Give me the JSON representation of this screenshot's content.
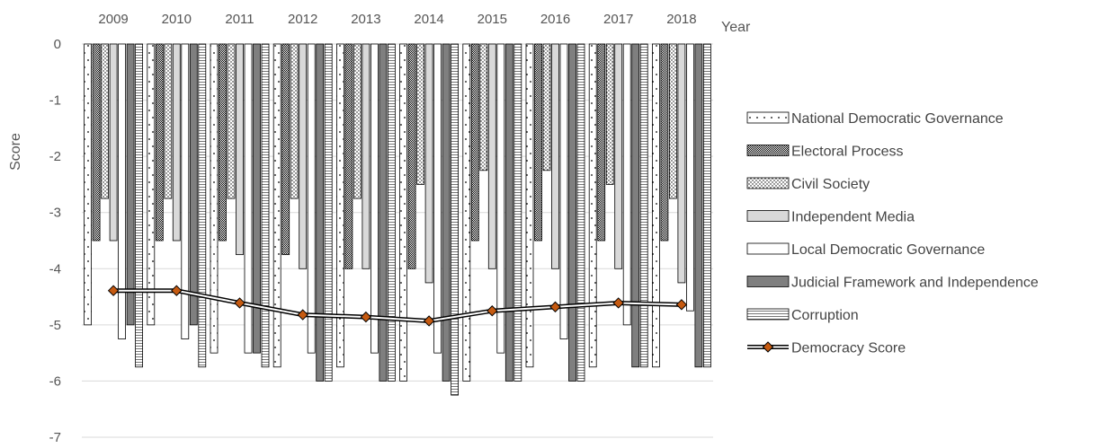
{
  "chart_data": {
    "type": "bar",
    "ylabel": "Score",
    "xlabel": "Year",
    "ylim": [
      -7,
      0
    ],
    "yticks": [
      0,
      -1,
      -2,
      -3,
      -4,
      -5,
      -6,
      -7
    ],
    "x_axis_position": "top",
    "grid": "horizontal",
    "legend_placement": "right",
    "categories": [
      "2009",
      "2010",
      "2011",
      "2012",
      "2013",
      "2014",
      "2015",
      "2016",
      "2017",
      "2018"
    ],
    "series": [
      {
        "name": "National Democratic Governance",
        "kind": "bar",
        "pattern": "sparse-dots",
        "values": [
          -5,
          -5,
          -5.5,
          -5.75,
          -5.75,
          -6,
          -6,
          -5.75,
          -5.75,
          -5.75
        ]
      },
      {
        "name": "Electoral Process",
        "kind": "bar",
        "pattern": "dense-checker",
        "values": [
          -3.5,
          -3.5,
          -3.5,
          -3.75,
          -4,
          -4,
          -3.5,
          -3.5,
          -3.5,
          -3.5
        ]
      },
      {
        "name": "Civil Society",
        "kind": "bar",
        "pattern": "dots",
        "values": [
          -2.75,
          -2.75,
          -2.75,
          -2.75,
          -2.75,
          -2.5,
          -2.25,
          -2.25,
          -2.5,
          -2.75
        ]
      },
      {
        "name": "Independent Media",
        "kind": "bar",
        "pattern": "light-grey",
        "values": [
          -3.5,
          -3.5,
          -3.75,
          -4,
          -4,
          -4.25,
          -4,
          -4,
          -4,
          -4.25
        ]
      },
      {
        "name": "Local Democratic Governance",
        "kind": "bar",
        "pattern": "white",
        "values": [
          -5.25,
          -5.25,
          -5.5,
          -5.5,
          -5.5,
          -5.5,
          -5.5,
          -5.25,
          -5,
          -4.75
        ]
      },
      {
        "name": "Judicial Framework and Independence",
        "kind": "bar",
        "pattern": "dark-grey",
        "values": [
          -5,
          -5,
          -5.5,
          -6,
          -6,
          -6,
          -6,
          -6,
          -5.75,
          -5.75
        ]
      },
      {
        "name": "Corruption",
        "kind": "bar",
        "pattern": "horizontal-lines",
        "values": [
          -5.75,
          -5.75,
          -5.75,
          -6,
          -6,
          -6.25,
          -6,
          -6,
          -5.75,
          -5.75
        ]
      },
      {
        "name": "Democracy Score",
        "kind": "line",
        "marker": "diamond",
        "values": [
          -4.39,
          -4.39,
          -4.61,
          -4.82,
          -4.86,
          -4.93,
          -4.75,
          -4.68,
          -4.61,
          -4.64
        ]
      }
    ],
    "colors": {
      "bar_stroke": "#000000",
      "dark_grey": "#7f7f7f",
      "light_grey": "#d9d9d9",
      "line": "#000000",
      "marker_fill": "#c55a11",
      "grid": "#d9d9d9"
    }
  }
}
